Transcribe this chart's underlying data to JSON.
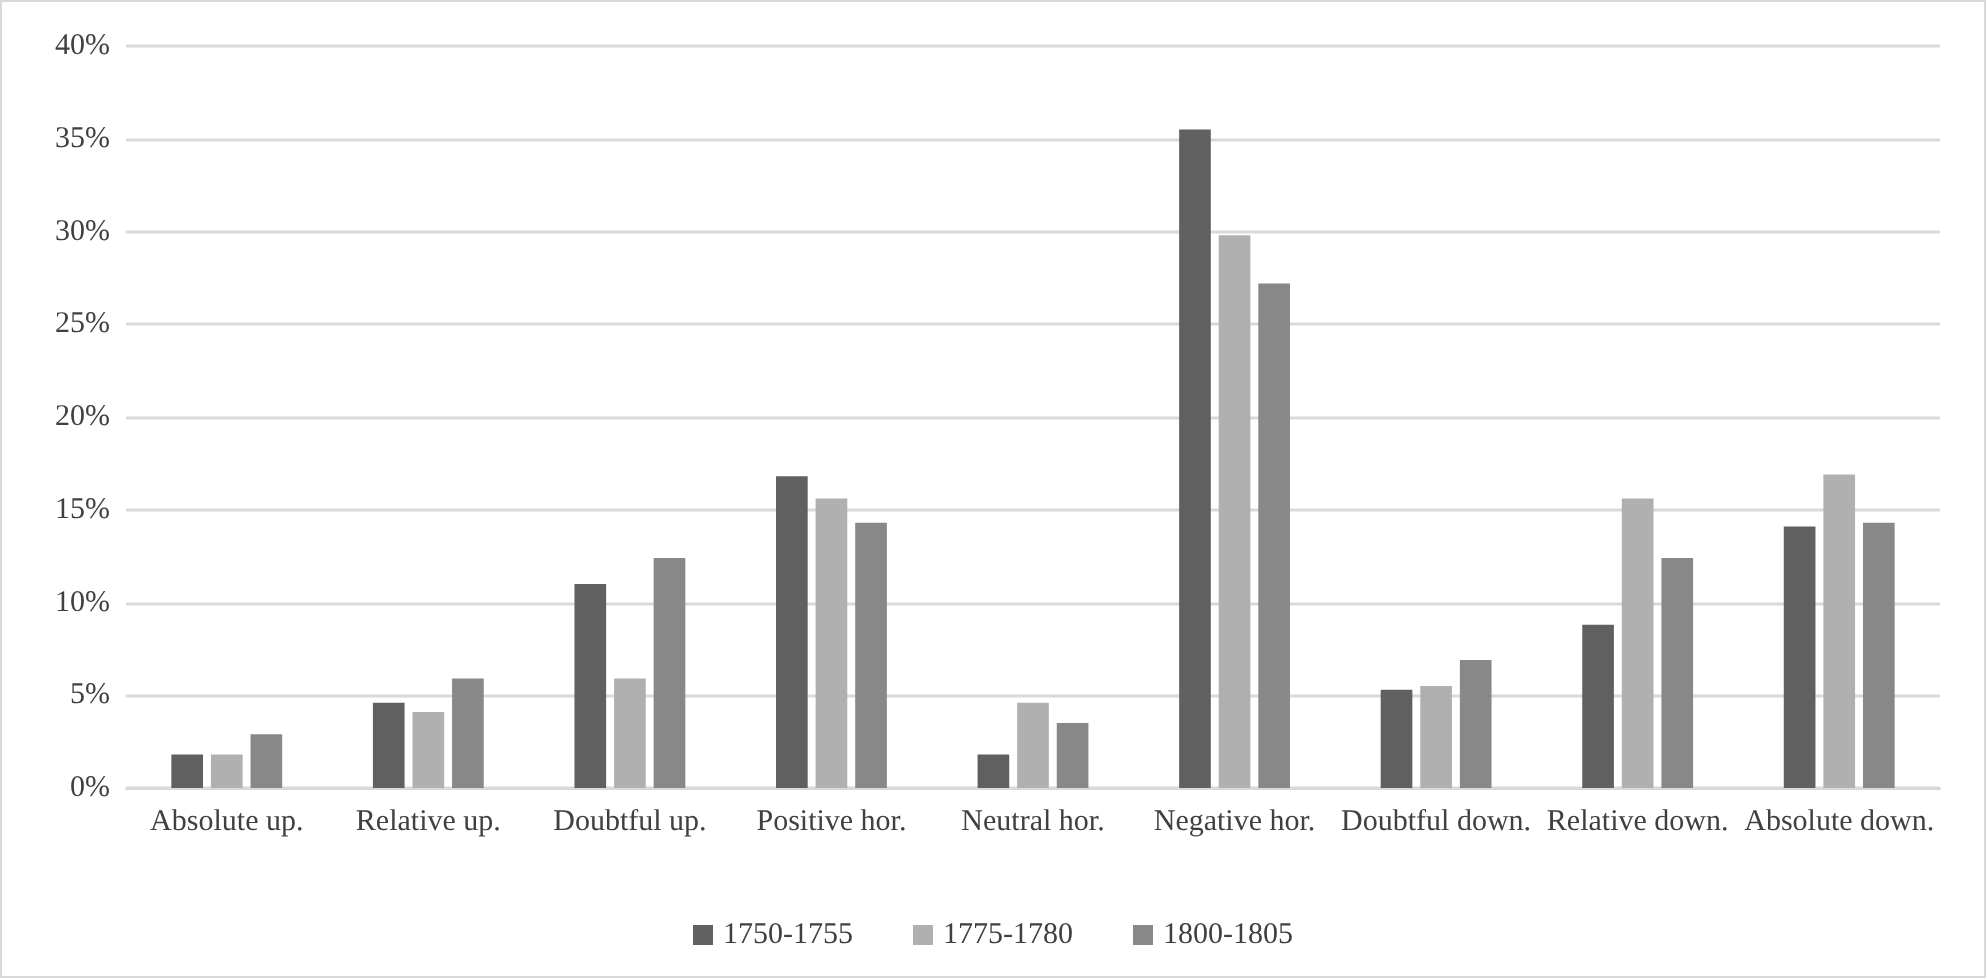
{
  "chart_data": {
    "type": "bar",
    "categories": [
      "Absolute up.",
      "Relative up.",
      "Doubtful up.",
      "Positive hor.",
      "Neutral hor.",
      "Negative hor.",
      "Doubtful down.",
      "Relative down.",
      "Absolute down."
    ],
    "series": [
      {
        "name": "1750-1755",
        "color": "#606060",
        "values": [
          1.8,
          4.6,
          11.0,
          16.8,
          1.8,
          35.5,
          5.3,
          8.8,
          14.1
        ]
      },
      {
        "name": "1775-1780",
        "color": "#b0b0b0",
        "values": [
          1.8,
          4.1,
          5.9,
          15.6,
          4.6,
          29.8,
          5.5,
          15.6,
          16.9
        ]
      },
      {
        "name": "1800-1805",
        "color": "#888888",
        "values": [
          2.9,
          5.9,
          12.4,
          14.3,
          3.5,
          27.2,
          6.9,
          12.4,
          14.3
        ]
      }
    ],
    "ylim": [
      0,
      40
    ],
    "yticks": [
      {
        "value": 0,
        "label": "0%"
      },
      {
        "value": 5,
        "label": "5%"
      },
      {
        "value": 10,
        "label": "10%"
      },
      {
        "value": 15,
        "label": "15%"
      },
      {
        "value": 20,
        "label": "20%"
      },
      {
        "value": 25,
        "label": "25%"
      },
      {
        "value": 30,
        "label": "30%"
      },
      {
        "value": 35,
        "label": "35%"
      },
      {
        "value": 40,
        "label": "40%"
      }
    ],
    "grid": "y",
    "legend": "bottom"
  }
}
